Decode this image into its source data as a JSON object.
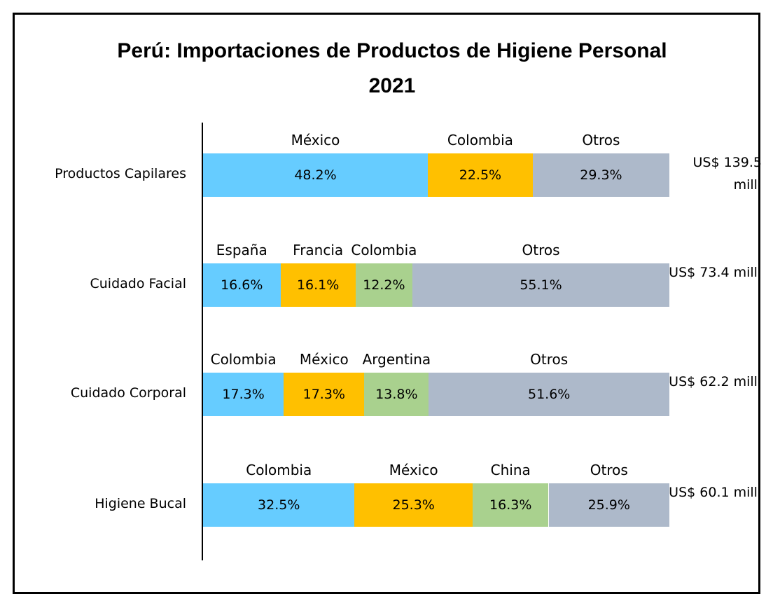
{
  "chart_data": {
    "type": "bar",
    "orientation": "horizontal",
    "stacked": true,
    "title": "Perú: Importaciones de Productos de Higiene Personal 2021",
    "xlim": [
      0,
      100
    ],
    "rows": [
      {
        "category": "Productos Capilares",
        "total_label": "US$ 139.5 mill.",
        "segments": [
          {
            "name": "México",
            "value": 48.2,
            "value_label": "48.2%",
            "color": "#66ccff"
          },
          {
            "name": "Colombia",
            "value": 22.5,
            "value_label": "22.5%",
            "color": "#ffc000"
          },
          {
            "name": "Otros",
            "value": 29.3,
            "value_label": "29.3%",
            "color": "#adb9ca"
          }
        ]
      },
      {
        "category": "Cuidado Facial",
        "total_label": "US$ 73.4 mill.",
        "segments": [
          {
            "name": "España",
            "value": 16.6,
            "value_label": "16.6%",
            "color": "#66ccff"
          },
          {
            "name": "Francia",
            "value": 16.1,
            "value_label": "16.1%",
            "color": "#ffc000"
          },
          {
            "name": "Colombia",
            "value": 12.2,
            "value_label": "12.2%",
            "color": "#a9d18e"
          },
          {
            "name": "Otros",
            "value": 55.1,
            "value_label": "55.1%",
            "color": "#adb9ca"
          }
        ]
      },
      {
        "category": "Cuidado Corporal",
        "total_label": "US$ 62.2 mill.",
        "segments": [
          {
            "name": "Colombia",
            "value": 17.3,
            "value_label": "17.3%",
            "color": "#66ccff"
          },
          {
            "name": "México",
            "value": 17.3,
            "value_label": "17.3%",
            "color": "#ffc000"
          },
          {
            "name": "Argentina",
            "value": 13.8,
            "value_label": "13.8%",
            "color": "#a9d18e"
          },
          {
            "name": "Otros",
            "value": 51.6,
            "value_label": "51.6%",
            "color": "#adb9ca"
          }
        ]
      },
      {
        "category": "Higiene Bucal",
        "total_label": "US$ 60.1 mill.",
        "segments": [
          {
            "name": "Colombia",
            "value": 32.5,
            "value_label": "32.5%",
            "color": "#66ccff"
          },
          {
            "name": "México",
            "value": 25.3,
            "value_label": "25.3%",
            "color": "#ffc000"
          },
          {
            "name": "China",
            "value": 16.3,
            "value_label": "16.3%",
            "color": "#a9d18e"
          },
          {
            "name": "Otros",
            "value": 25.9,
            "value_label": "25.9%",
            "color": "#adb9ca"
          }
        ]
      }
    ]
  }
}
